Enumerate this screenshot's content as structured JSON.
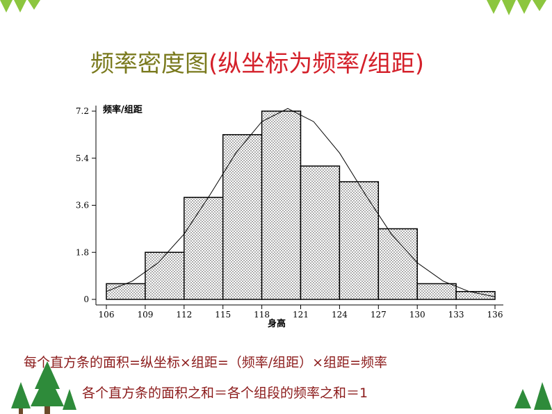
{
  "chart_data": {
    "type": "histogram",
    "title": "频率密度图",
    "subtitle": "(纵坐标为频率/组距)",
    "ylabel": "频率/组距",
    "xlabel": "身高",
    "bins": [
      106,
      109,
      112,
      115,
      118,
      121,
      124,
      127,
      130,
      133,
      136
    ],
    "values": [
      0.6,
      1.8,
      3.9,
      6.3,
      7.2,
      5.1,
      4.5,
      2.7,
      0.6,
      0.3
    ],
    "curve": {
      "x": [
        106,
        108,
        110,
        112,
        114,
        116,
        118,
        120,
        122,
        124,
        126,
        128,
        130,
        132,
        134,
        136
      ],
      "values": [
        0.3,
        0.7,
        1.4,
        2.5,
        4.0,
        5.6,
        6.8,
        7.3,
        6.8,
        5.6,
        4.0,
        2.5,
        1.4,
        0.7,
        0.3,
        0.1
      ]
    },
    "xlim": [
      106,
      136
    ],
    "xticks": [
      106,
      109,
      112,
      115,
      118,
      121,
      124,
      127,
      130,
      133,
      136
    ],
    "ylim": [
      0,
      7.2
    ],
    "yticks": [
      0,
      1.8,
      3.6,
      5.4,
      7.2
    ]
  },
  "notes": [
    "每个直方条的面积=纵坐标×组距=（频率/组距）×组距=频率",
    "各个直方条的面积之和＝各个组段的频率之和＝1"
  ]
}
